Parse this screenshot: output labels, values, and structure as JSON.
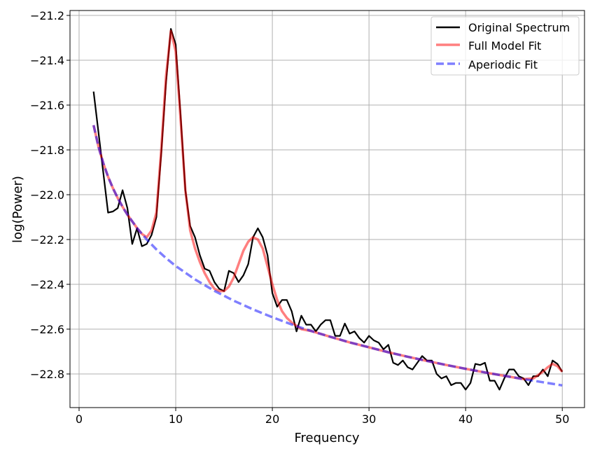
{
  "chart_data": {
    "type": "line",
    "title": "",
    "xlabel": "Frequency",
    "ylabel": "log(Power)",
    "xlim": [
      -0.94,
      52.3
    ],
    "ylim": [
      -22.95,
      -21.178
    ],
    "xticks": [
      0,
      10,
      20,
      30,
      40,
      50
    ],
    "xtick_labels": [
      "0",
      "10",
      "20",
      "30",
      "40",
      "50"
    ],
    "yticks": [
      -21.2,
      -21.4,
      -21.6,
      -21.8,
      -22.0,
      -22.2,
      -22.4,
      -22.6,
      -22.8
    ],
    "ytick_labels": [
      "−21.2",
      "−21.4",
      "−21.6",
      "−21.8",
      "−22.0",
      "−22.2",
      "−22.4",
      "−22.6",
      "−22.8"
    ],
    "grid": true,
    "legend_position": "top-right",
    "series": [
      {
        "name": "Original Spectrum",
        "color": "#000000",
        "style": "solid",
        "x": [
          1.5,
          2,
          2.5,
          3,
          3.5,
          4,
          4.5,
          5,
          5.5,
          6,
          6.5,
          7,
          7.5,
          8,
          8.5,
          9,
          9.5,
          10,
          10.5,
          11,
          11.5,
          12,
          12.5,
          13,
          13.5,
          14,
          14.5,
          15,
          15.5,
          16,
          16.5,
          17,
          17.5,
          18,
          18.5,
          19,
          19.5,
          20,
          20.5,
          21,
          21.5,
          22,
          22.5,
          23,
          23.5,
          24,
          24.5,
          25,
          25.5,
          26,
          26.5,
          27,
          27.5,
          28,
          28.5,
          29,
          29.5,
          30,
          30.5,
          31,
          31.5,
          32,
          32.5,
          33,
          33.5,
          34,
          34.5,
          35,
          35.5,
          36,
          36.5,
          37,
          37.5,
          38,
          38.5,
          39,
          39.5,
          40,
          40.5,
          41,
          41.5,
          42,
          42.5,
          43,
          43.5,
          44,
          44.5,
          45,
          45.5,
          46,
          46.5,
          47,
          47.5,
          48,
          48.5,
          49,
          49.5,
          50
        ],
        "y": [
          -21.54,
          -21.72,
          -21.9,
          -22.08,
          -22.075,
          -22.06,
          -21.98,
          -22.06,
          -22.22,
          -22.15,
          -22.23,
          -22.22,
          -22.18,
          -22.1,
          -21.82,
          -21.5,
          -21.26,
          -21.33,
          -21.64,
          -21.98,
          -22.14,
          -22.19,
          -22.27,
          -22.33,
          -22.34,
          -22.39,
          -22.42,
          -22.43,
          -22.34,
          -22.35,
          -22.39,
          -22.36,
          -22.31,
          -22.19,
          -22.15,
          -22.19,
          -22.27,
          -22.44,
          -22.5,
          -22.47,
          -22.47,
          -22.52,
          -22.61,
          -22.54,
          -22.58,
          -22.58,
          -22.61,
          -22.58,
          -22.56,
          -22.56,
          -22.63,
          -22.63,
          -22.575,
          -22.62,
          -22.61,
          -22.64,
          -22.66,
          -22.63,
          -22.65,
          -22.66,
          -22.69,
          -22.67,
          -22.75,
          -22.76,
          -22.74,
          -22.77,
          -22.78,
          -22.75,
          -22.72,
          -22.74,
          -22.74,
          -22.8,
          -22.82,
          -22.81,
          -22.85,
          -22.84,
          -22.84,
          -22.87,
          -22.84,
          -22.755,
          -22.76,
          -22.75,
          -22.83,
          -22.83,
          -22.87,
          -22.82,
          -22.78,
          -22.78,
          -22.81,
          -22.82,
          -22.85,
          -22.81,
          -22.81,
          -22.78,
          -22.81,
          -22.74,
          -22.755,
          -22.79
        ]
      },
      {
        "name": "Full Model Fit",
        "color": "#ff7f7f",
        "style": "solid",
        "x": [
          1.5,
          2,
          2.5,
          3,
          3.5,
          4,
          4.5,
          5,
          6,
          6.5,
          7,
          7.5,
          8,
          8.5,
          9,
          9.5,
          10,
          10.5,
          11,
          11.5,
          12,
          12.5,
          13,
          13.5,
          14,
          14.5,
          15,
          15.5,
          16,
          16.5,
          17,
          17.5,
          18,
          18.5,
          19,
          19.5,
          20,
          20.5,
          21,
          21.5,
          22,
          23,
          24,
          26,
          28,
          30,
          32,
          34,
          36,
          38,
          40,
          42,
          44,
          46,
          47,
          48,
          48.5,
          49,
          49.5,
          50
        ],
        "y": [
          -21.69,
          -21.785,
          -21.859,
          -21.92,
          -21.971,
          -22.015,
          -22.054,
          -22.089,
          -22.149,
          -22.175,
          -22.19,
          -22.16,
          -22.08,
          -21.8,
          -21.47,
          -21.27,
          -21.36,
          -21.66,
          -21.98,
          -22.16,
          -22.24,
          -22.3,
          -22.35,
          -22.39,
          -22.42,
          -22.43,
          -22.43,
          -22.41,
          -22.37,
          -22.31,
          -22.25,
          -22.21,
          -22.19,
          -22.2,
          -22.24,
          -22.32,
          -22.4,
          -22.47,
          -22.52,
          -22.55,
          -22.57,
          -22.6,
          -22.608,
          -22.634,
          -22.659,
          -22.681,
          -22.703,
          -22.723,
          -22.742,
          -22.76,
          -22.777,
          -22.793,
          -22.808,
          -22.823,
          -22.82,
          -22.79,
          -22.77,
          -22.755,
          -22.765,
          -22.79
        ]
      },
      {
        "name": "Aperiodic Fit",
        "color": "#7f7fff",
        "style": "dashed",
        "x": [
          1.5,
          2,
          2.5,
          3,
          3.5,
          4,
          4.5,
          5,
          6,
          7,
          8,
          9,
          10,
          12,
          14,
          16,
          18,
          20,
          22,
          24,
          26,
          28,
          30,
          32,
          34,
          36,
          38,
          40,
          42,
          44,
          46,
          48,
          50
        ],
        "y": [
          -21.69,
          -21.785,
          -21.859,
          -21.92,
          -21.971,
          -22.015,
          -22.054,
          -22.089,
          -22.149,
          -22.2,
          -22.244,
          -22.283,
          -22.318,
          -22.378,
          -22.429,
          -22.473,
          -22.512,
          -22.547,
          -22.579,
          -22.608,
          -22.634,
          -22.659,
          -22.681,
          -22.703,
          -22.723,
          -22.742,
          -22.76,
          -22.777,
          -22.793,
          -22.808,
          -22.823,
          -22.837,
          -22.851
        ]
      }
    ]
  }
}
